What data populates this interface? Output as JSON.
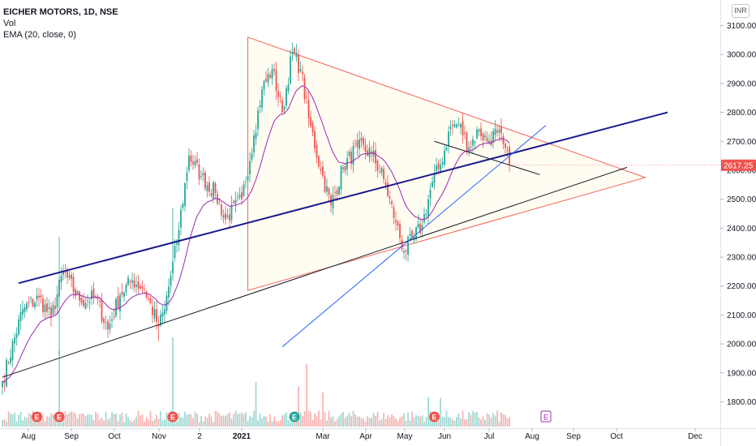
{
  "header": {
    "symbol": "EICHER MOTORS, 1D, NSE",
    "volume_label": "Vol",
    "ema_label": "EMA (20, close, 0)",
    "currency": "INR"
  },
  "colors": {
    "up": "#26a69a",
    "down": "#ef5350",
    "ema": "#9c27b0",
    "trend_main": "#1a1a8e",
    "trend_support": "#131722",
    "trend_steep": "#2962ff",
    "triangle": "#f0675c",
    "triangle_fill": "#fffcf2",
    "price_tag": "#ef5350",
    "earnings_E": "#ef5350",
    "earnings_E_alt": "#26a69a",
    "future_E": "#9c27b0"
  },
  "chart_data": {
    "type": "candlestick",
    "title": "EICHER MOTORS, 1D, NSE",
    "ylim": [
      1750,
      3160
    ],
    "y_ticks": [
      1800,
      1900,
      2000,
      2100,
      2200,
      2300,
      2400,
      2500,
      2600,
      2700,
      2800,
      2900,
      3000,
      3100
    ],
    "y_tick_labels": [
      "1800.00",
      "1900.00",
      "2000.00",
      "2100.00",
      "2200.00",
      "2300.00",
      "2400.00",
      "2500.00",
      "2600.00",
      "2700.00",
      "2800.00",
      "2900.00",
      "3000.00",
      "3100.00"
    ],
    "x_tick_labels": [
      "Aug",
      "Sep",
      "Oct",
      "Nov",
      "2",
      "2021",
      "Mar",
      "Apr",
      "May",
      "Jun",
      "Jul",
      "Aug",
      "Sep",
      "Oct",
      "Dec"
    ],
    "last_price": "2617.25",
    "grid": false,
    "anchors": [
      {
        "d": 0,
        "v": 1870
      },
      {
        "d": 10,
        "v": 2120
      },
      {
        "d": 18,
        "v": 2160
      },
      {
        "d": 24,
        "v": 2090
      },
      {
        "d": 30,
        "v": 2250
      },
      {
        "d": 38,
        "v": 2150
      },
      {
        "d": 46,
        "v": 2160
      },
      {
        "d": 52,
        "v": 2050
      },
      {
        "d": 58,
        "v": 2170
      },
      {
        "d": 64,
        "v": 2220
      },
      {
        "d": 70,
        "v": 2190
      },
      {
        "d": 77,
        "v": 2060
      },
      {
        "d": 80,
        "v": 2120
      },
      {
        "d": 86,
        "v": 2350
      },
      {
        "d": 92,
        "v": 2650
      },
      {
        "d": 98,
        "v": 2580
      },
      {
        "d": 105,
        "v": 2520
      },
      {
        "d": 110,
        "v": 2430
      },
      {
        "d": 118,
        "v": 2500
      },
      {
        "d": 124,
        "v": 2720
      },
      {
        "d": 128,
        "v": 2880
      },
      {
        "d": 133,
        "v": 2950
      },
      {
        "d": 138,
        "v": 2800
      },
      {
        "d": 143,
        "v": 3010
      },
      {
        "d": 147,
        "v": 2950
      },
      {
        "d": 151,
        "v": 2780
      },
      {
        "d": 157,
        "v": 2600
      },
      {
        "d": 162,
        "v": 2480
      },
      {
        "d": 168,
        "v": 2610
      },
      {
        "d": 175,
        "v": 2680
      },
      {
        "d": 182,
        "v": 2660
      },
      {
        "d": 188,
        "v": 2570
      },
      {
        "d": 194,
        "v": 2420
      },
      {
        "d": 198,
        "v": 2320
      },
      {
        "d": 203,
        "v": 2370
      },
      {
        "d": 207,
        "v": 2410
      },
      {
        "d": 212,
        "v": 2560
      },
      {
        "d": 216,
        "v": 2620
      },
      {
        "d": 221,
        "v": 2750
      },
      {
        "d": 225,
        "v": 2760
      },
      {
        "d": 230,
        "v": 2680
      },
      {
        "d": 235,
        "v": 2740
      },
      {
        "d": 239,
        "v": 2700
      },
      {
        "d": 244,
        "v": 2730
      },
      {
        "d": 247,
        "v": 2690
      },
      {
        "d": 250,
        "v": 2617
      }
    ],
    "volume_spikes": [
      {
        "d": 28,
        "v": 0.85
      },
      {
        "d": 84,
        "v": 1.0
      },
      {
        "d": 125,
        "v": 0.5
      },
      {
        "d": 146,
        "v": 0.45
      },
      {
        "d": 150,
        "v": 0.7
      },
      {
        "d": 158,
        "v": 0.38
      },
      {
        "d": 210,
        "v": 0.33
      },
      {
        "d": 216,
        "v": 0.32
      }
    ],
    "drawings": [
      {
        "name": "upper-trendline",
        "from": {
          "d": 8,
          "v": 2210
        },
        "to": {
          "d": 328,
          "v": 2800
        }
      },
      {
        "name": "lower-trendline",
        "from": {
          "d": 0,
          "v": 1885
        },
        "to": {
          "d": 308,
          "v": 2610
        }
      },
      {
        "name": "steep-trendline",
        "from": {
          "d": 138,
          "v": 1990
        },
        "to": {
          "d": 268,
          "v": 2755
        }
      },
      {
        "name": "flag-line",
        "from": {
          "d": 213,
          "v": 2700
        },
        "to": {
          "d": 265,
          "v": 2585
        }
      },
      {
        "name": "triangle",
        "points": [
          {
            "d": 121,
            "v": 3060
          },
          {
            "d": 121,
            "v": 2185
          },
          {
            "d": 317,
            "v": 2575
          }
        ]
      }
    ],
    "earnings_markers": [
      {
        "d": 17,
        "label": "E",
        "style": "red"
      },
      {
        "d": 28,
        "label": "E",
        "style": "red"
      },
      {
        "d": 84,
        "label": "E",
        "style": "red"
      },
      {
        "d": 144,
        "label": "E",
        "style": "green"
      },
      {
        "d": 213,
        "label": "E",
        "style": "red"
      },
      {
        "d": 268,
        "label": "E",
        "style": "future"
      }
    ],
    "ema_period": 20
  }
}
